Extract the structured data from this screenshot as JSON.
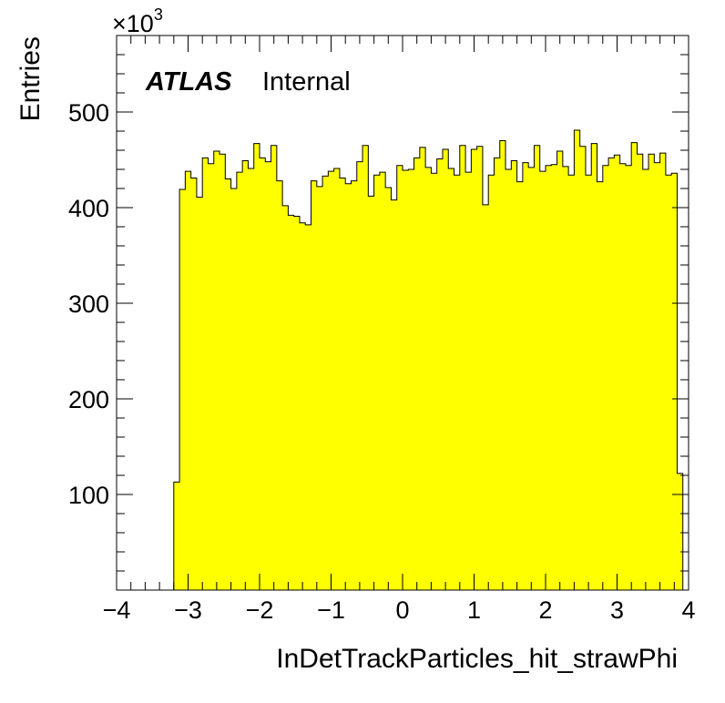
{
  "chart_data": {
    "type": "bar",
    "histogram": true,
    "xlabel": "InDetTrackParticles_hit_strawPhi",
    "ylabel": "Entries",
    "exponent_label": "×10",
    "exponent": "3",
    "label_bold": "ATLAS",
    "label_text": "Internal",
    "xlim": [
      -4,
      4
    ],
    "ylim": [
      0,
      580
    ],
    "x_ticks": [
      -4,
      -3,
      -2,
      -1,
      0,
      1,
      2,
      3,
      4
    ],
    "x_tick_labels": [
      "−4",
      "−3",
      "−2",
      "−1",
      "0",
      "1",
      "2",
      "3",
      "4"
    ],
    "y_ticks": [
      100,
      200,
      300,
      400,
      500
    ],
    "y_tick_labels": [
      "100",
      "200",
      "300",
      "400",
      "500"
    ],
    "fill_color": "#ffff00",
    "line_color": "#000000",
    "bin_start": -3.2,
    "bin_width": 0.08,
    "values": [
      113,
      419,
      438,
      431,
      411,
      452,
      446,
      459,
      456,
      430,
      420,
      437,
      449,
      441,
      467,
      452,
      448,
      465,
      428,
      402,
      392,
      391,
      384,
      382,
      428,
      422,
      433,
      438,
      441,
      431,
      425,
      428,
      448,
      465,
      412,
      434,
      437,
      421,
      408,
      444,
      439,
      440,
      452,
      463,
      442,
      436,
      451,
      461,
      441,
      434,
      465,
      437,
      461,
      464,
      403,
      434,
      452,
      470,
      440,
      449,
      427,
      447,
      442,
      465,
      438,
      444,
      445,
      459,
      443,
      434,
      481,
      464,
      434,
      467,
      427,
      444,
      452,
      455,
      446,
      444,
      468,
      456,
      440,
      456,
      447,
      457,
      434,
      436,
      122
    ]
  }
}
